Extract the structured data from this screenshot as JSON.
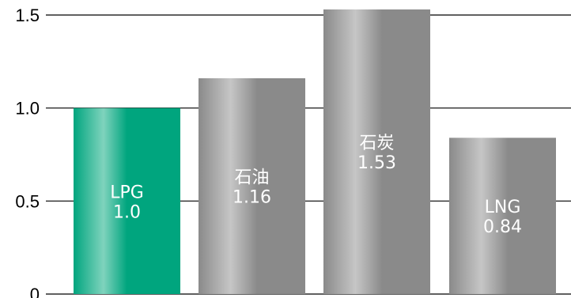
{
  "chart_data": {
    "type": "bar",
    "categories": [
      "LPG",
      "石油",
      "石炭",
      "LNG"
    ],
    "values": [
      1.0,
      1.16,
      1.53,
      0.84
    ],
    "value_labels": [
      "1.0",
      "1.16",
      "1.53",
      "0.84"
    ],
    "y_ticks": [
      0,
      0.5,
      1.0,
      1.5
    ],
    "y_tick_labels": [
      "0",
      "0.5",
      "1.0",
      "1.5"
    ],
    "ylim": [
      0,
      1.5
    ],
    "grid": true,
    "colors": {
      "highlight": "#00a57e",
      "highlight_light": "#7fd3bd",
      "default": "#888888",
      "default_light": "#c4c4c4"
    }
  }
}
